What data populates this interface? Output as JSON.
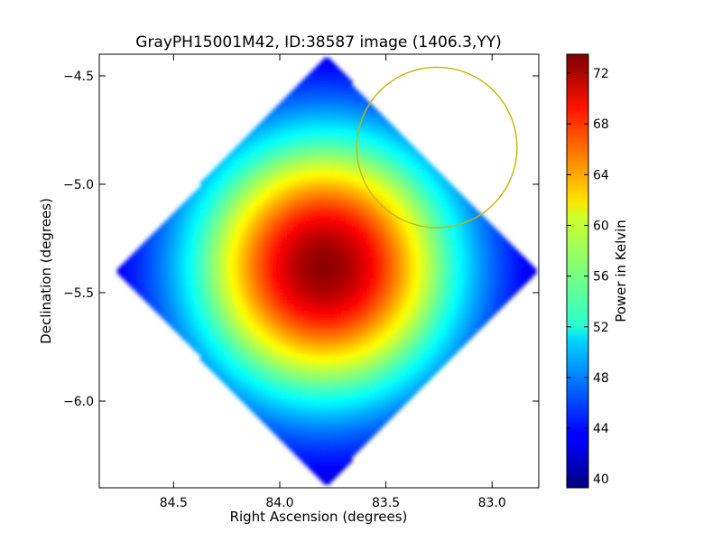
{
  "chart_data": {
    "type": "heatmap",
    "title": "GrayPH15001M42, ID:38587 image (1406.3,YY)",
    "xlabel": "Right Ascension (degrees)",
    "ylabel": "Declination (degrees)",
    "xlim": [
      84.85,
      82.78
    ],
    "ylim": [
      -6.4,
      -4.4
    ],
    "x_inverted": true,
    "xticks": [
      84.5,
      84.0,
      83.5,
      83.0
    ],
    "xtick_labels": [
      "84.5",
      "84.0",
      "83.5",
      "83.0"
    ],
    "yticks": [
      -4.5,
      -5.0,
      -5.5,
      -6.0
    ],
    "ytick_labels": [
      "−4.5",
      "−5.0",
      "−5.5",
      "−6.0"
    ],
    "colormap": "jet",
    "colorbar": {
      "label": "Power in Kelvin",
      "min": 39.3,
      "max": 73.5,
      "ticks": [
        40,
        44,
        48,
        52,
        56,
        60,
        64,
        68,
        72
      ],
      "tick_labels": [
        "40",
        "44",
        "48",
        "52",
        "56",
        "60",
        "64",
        "68",
        "72"
      ]
    },
    "map": {
      "footprint": "rotated-square",
      "footprint_center": [
        83.78,
        -5.4
      ],
      "footprint_corners": {
        "top": [
          83.78,
          -4.4
        ],
        "bottom": [
          83.78,
          -6.37
        ],
        "left": [
          84.8,
          -5.38
        ],
        "right": [
          82.8,
          -5.38
        ]
      },
      "peak_position": [
        83.79,
        -5.38
      ],
      "peak_value": 73,
      "edge_value": 40
    },
    "annotations": [
      {
        "type": "circle",
        "color": "#c8b400",
        "center": [
          83.26,
          -4.83
        ],
        "radius_dec": 0.37
      }
    ]
  }
}
